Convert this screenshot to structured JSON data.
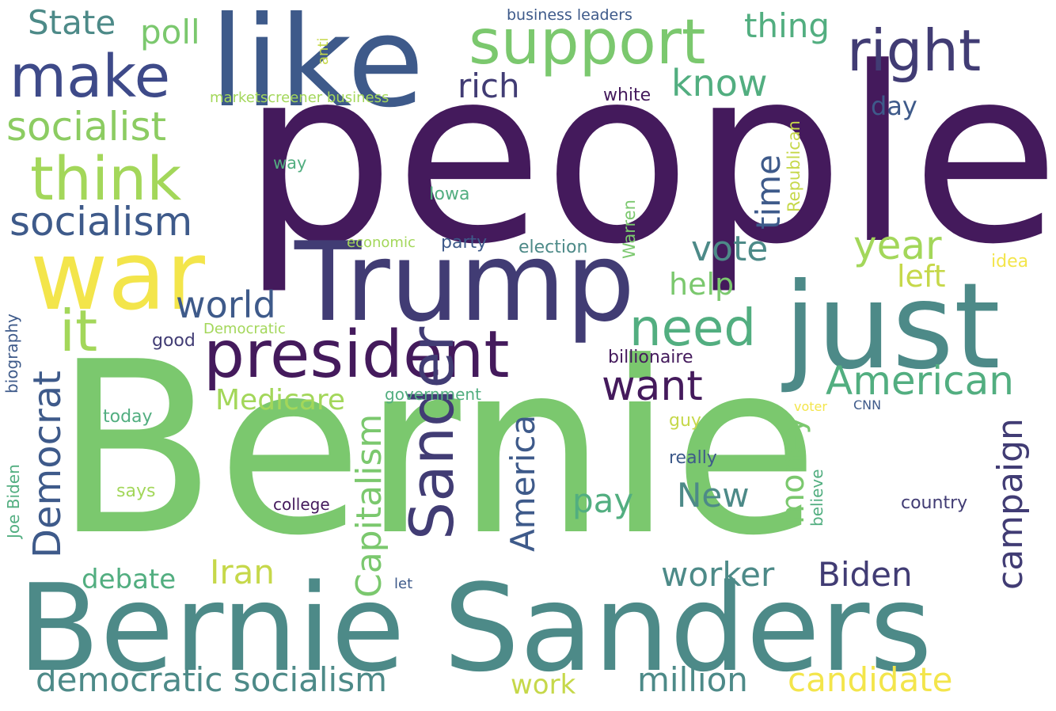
{
  "colors": {
    "background": "#ffffff",
    "palette": [
      "#440154",
      "#482878",
      "#3e4a89",
      "#31688e",
      "#26828e",
      "#1f9e89",
      "#35b779",
      "#6ece58",
      "#b5de2b",
      "#fde725"
    ]
  },
  "words": {
    "people": "people",
    "bernie": "Bernie",
    "bernie_sanders": "Bernie Sanders",
    "like": "like",
    "trump": "Trump",
    "just": "just",
    "war": "war",
    "support": "support",
    "president": "president",
    "sander": "Sander",
    "right": "right",
    "make": "make",
    "think": "think",
    "socialist": "socialist",
    "socialism": "socialism",
    "democratic_socialism": "democratic socialism",
    "need": "need",
    "american": "American",
    "it": "it",
    "world": "world",
    "democrat": "Democrat",
    "capitalism": "Capitalism",
    "campaign": "campaign",
    "million": "million",
    "candidate": "candidate",
    "want": "want",
    "america": "America",
    "know": "know",
    "time": "time",
    "year": "year",
    "vote": "vote",
    "rich": "rich",
    "thing": "thing",
    "poll": "poll",
    "state": "State",
    "worker": "worker",
    "biden": "Biden",
    "iran": "Iran",
    "money": "money",
    "pay": "pay",
    "new": "New",
    "left": "left",
    "help": "help",
    "medicare": "Medicare",
    "debate": "debate",
    "work": "work",
    "day": "day",
    "business_leaders": "business leaders",
    "marketscreener_business": "marketscreener business",
    "white": "white",
    "anti": "anti",
    "republican": "Republican",
    "way": "way",
    "iowa": "Iowa",
    "warren": "Warren",
    "economic": "economic",
    "party": "party",
    "election": "election",
    "idea": "idea",
    "biography": "biography",
    "good": "good",
    "democratic": "Democratic",
    "billionaire": "billionaire",
    "government": "government",
    "today": "today",
    "guy": "guy",
    "voter": "voter",
    "cnn": "CNN",
    "joe_biden": "Joe Biden",
    "really": "really",
    "says": "says",
    "college": "college",
    "believe": "believe",
    "country": "country",
    "let": "let"
  }
}
